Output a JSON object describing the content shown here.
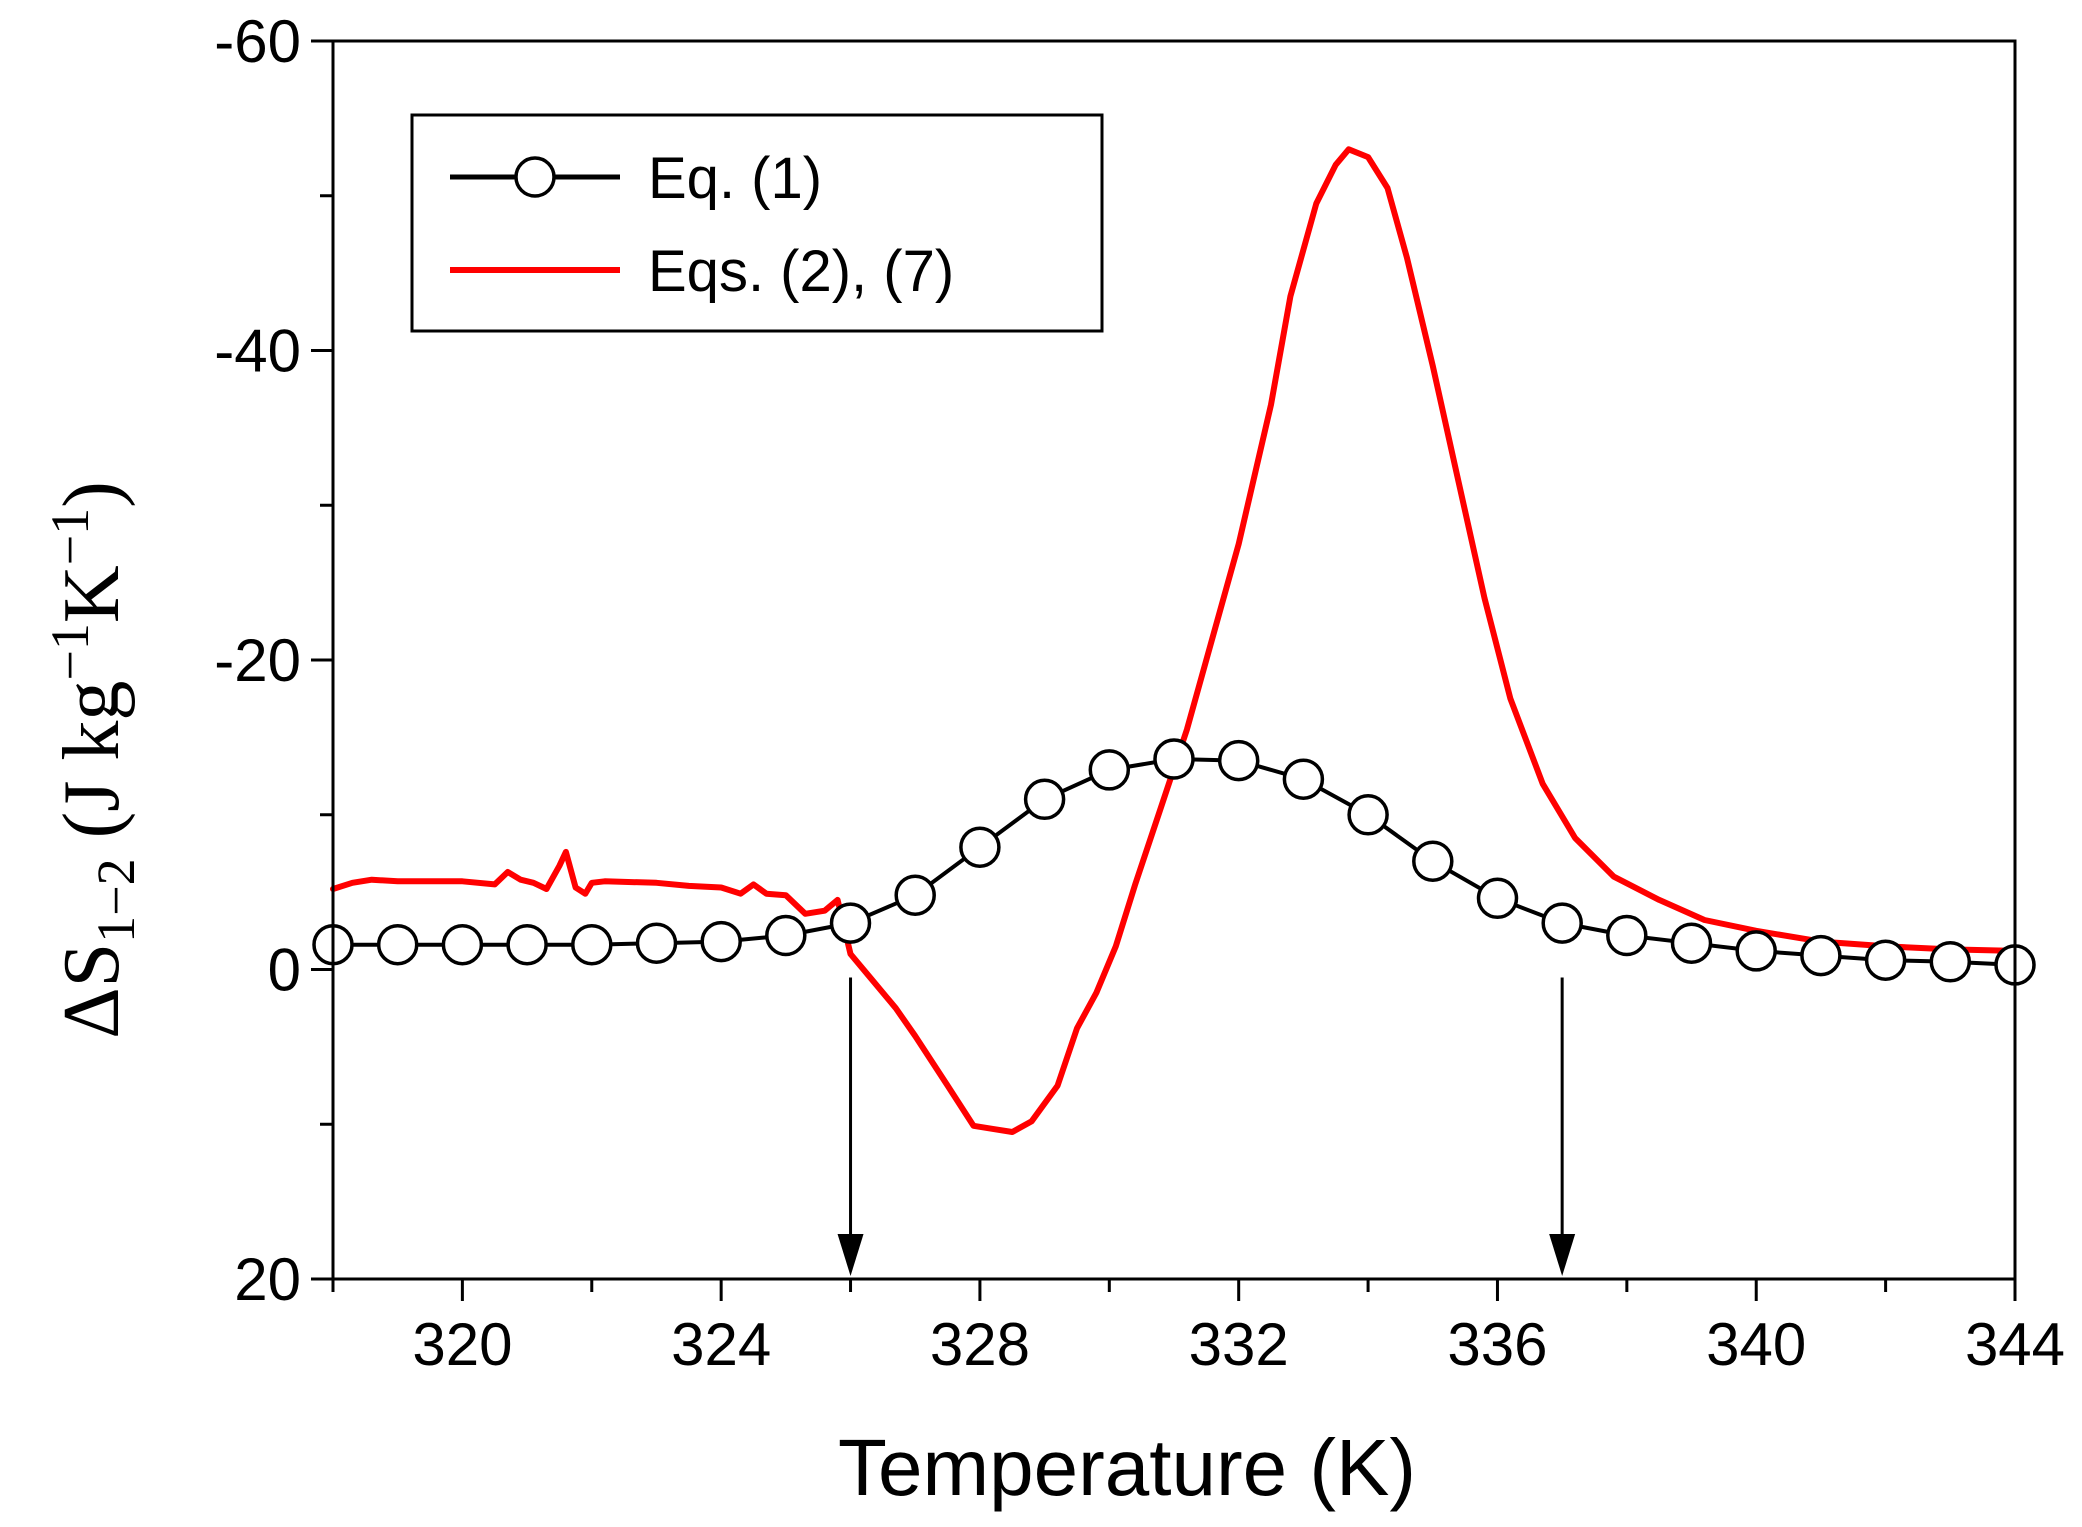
{
  "chart_data": {
    "type": "line",
    "title": "",
    "xlabel": "Temperature (K)",
    "ylabel_parts": {
      "symbol": "ΔS",
      "subscript": "1−2",
      "unit_open": " (J kg",
      "exp1": "−1",
      "unit_k": "K",
      "exp2": "−1",
      "unit_close": ")"
    },
    "xlim": [
      318,
      344
    ],
    "ylim": [
      20,
      -60
    ],
    "y_axis_reversed": true,
    "x_ticks": [
      320,
      324,
      328,
      332,
      336,
      340,
      344
    ],
    "x_tick_labels": [
      "320",
      "324",
      "328",
      "332",
      "336",
      "340",
      "344"
    ],
    "y_ticks": [
      -60,
      -40,
      -20,
      0,
      20
    ],
    "y_tick_labels": [
      "-60",
      "-40",
      "-20",
      "0",
      "20"
    ],
    "series": [
      {
        "name": "Eq. (1)",
        "color": "#000000",
        "marker": "open-circle",
        "x": [
          318,
          319,
          320,
          321,
          322,
          323,
          324,
          325,
          326,
          327,
          328,
          329,
          330,
          331,
          332,
          333,
          334,
          335,
          336,
          337,
          338,
          339,
          340,
          341,
          342,
          343,
          344
        ],
        "y": [
          -1.6,
          -1.6,
          -1.6,
          -1.6,
          -1.6,
          -1.7,
          -1.8,
          -2.2,
          -3.0,
          -4.8,
          -7.9,
          -11.0,
          -12.9,
          -13.6,
          -13.5,
          -12.3,
          -10.0,
          -7.0,
          -4.6,
          -3.0,
          -2.2,
          -1.7,
          -1.2,
          -0.9,
          -0.6,
          -0.5,
          -0.3
        ]
      },
      {
        "name": "Eqs. (2), (7)",
        "color": "#ff0000",
        "marker": "none",
        "x": [
          318,
          318.3,
          318.6,
          319,
          319.5,
          320,
          320.5,
          320.7,
          320.9,
          321.1,
          321.3,
          321.5,
          321.6,
          321.75,
          321.9,
          322.0,
          322.2,
          323,
          323.5,
          324,
          324.3,
          324.5,
          324.7,
          325,
          325.3,
          325.6,
          325.8,
          326.0,
          326.3,
          326.7,
          327,
          327.5,
          327.9,
          328.2,
          328.5,
          328.8,
          329.2,
          329.5,
          329.8,
          330.1,
          330.4,
          330.8,
          331.2,
          331.5,
          332,
          332.5,
          332.8,
          333.2,
          333.5,
          333.7,
          334.0,
          334.3,
          334.6,
          335,
          335.4,
          335.8,
          336.2,
          336.7,
          337.2,
          337.8,
          338.5,
          339.2,
          340,
          341,
          342,
          343,
          344
        ],
        "y": [
          -5.2,
          -5.6,
          -5.8,
          -5.7,
          -5.7,
          -5.7,
          -5.5,
          -6.3,
          -5.8,
          -5.6,
          -5.2,
          -6.7,
          -7.6,
          -5.3,
          -4.9,
          -5.6,
          -5.7,
          -5.6,
          -5.4,
          -5.3,
          -4.9,
          -5.5,
          -4.9,
          -4.8,
          -3.6,
          -3.8,
          -4.5,
          -1.0,
          0.5,
          2.5,
          4.3,
          7.5,
          10.1,
          10.3,
          10.5,
          9.8,
          7.5,
          3.8,
          1.5,
          -1.5,
          -5.5,
          -10.5,
          -15.5,
          -20.0,
          -27.5,
          -36.5,
          -43.5,
          -49.5,
          -52.0,
          -53.0,
          -52.5,
          -50.5,
          -46.0,
          -39.0,
          -31.5,
          -24.0,
          -17.5,
          -12.0,
          -8.5,
          -6.0,
          -4.5,
          -3.2,
          -2.5,
          -1.8,
          -1.5,
          -1.3,
          -1.2
        ]
      }
    ],
    "annotations": [
      {
        "type": "arrow",
        "x": 326,
        "y_from": 0,
        "y_to": 20,
        "direction": "down"
      },
      {
        "type": "arrow",
        "x": 337,
        "y_from": 0,
        "y_to": 20,
        "direction": "down"
      }
    ],
    "legend": {
      "placement": "top-left",
      "entries": [
        "Eq. (1)",
        "Eqs. (2), (7)"
      ]
    },
    "grid": false
  }
}
